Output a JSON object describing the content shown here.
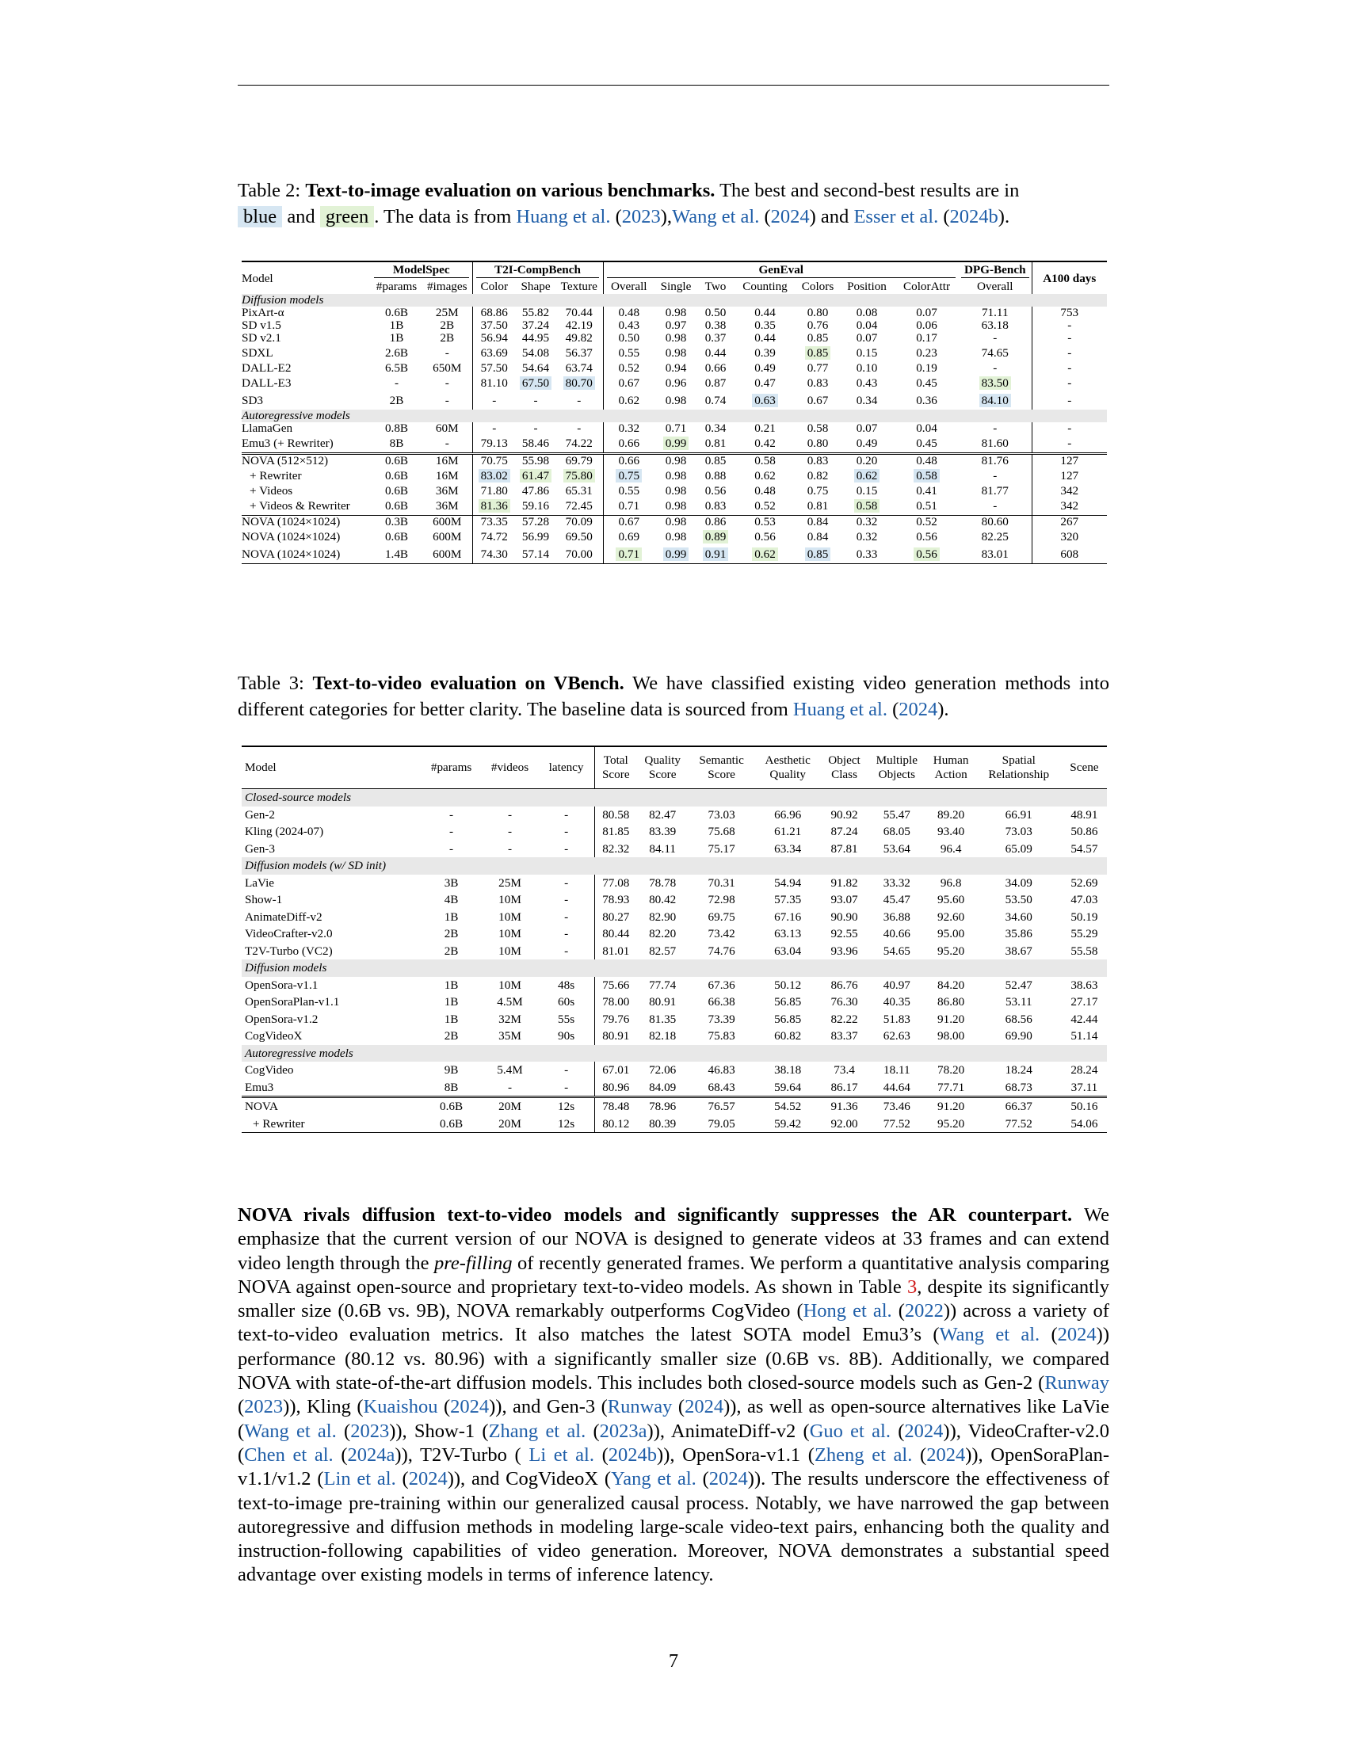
{
  "table2": {
    "caption": {
      "label": "Table 2: ",
      "title": "Text-to-image evaluation on various benchmarks.",
      "text1": " The best and second-best results are in ",
      "blue_word": "blue",
      "and": " and ",
      "green_word": "green",
      "text2": ". The data is from ",
      "cite1a": "Huang et al.",
      "cite1b": " (",
      "cite1c": "2023",
      "cite1d": "),",
      "cite2a": "Wang et al.",
      "cite2b": " (",
      "cite2c": "2024",
      "cite2d": ") and ",
      "cite3a": "Esser et al.",
      "cite3b": " (",
      "cite3c": "2024b",
      "cite3d": ")."
    },
    "groups": {
      "model": "Model",
      "modelspec": "ModelSpec",
      "t2i": "T2I-CompBench",
      "geneval": "GenEval",
      "dpg": "DPG-Bench",
      "a100": "A100 days"
    },
    "subheaders": [
      "#params",
      "#images",
      "Color",
      "Shape",
      "Texture",
      "Overall",
      "Single",
      "Two",
      "Counting",
      "Colors",
      "Position",
      "ColorAttr",
      "Overall"
    ],
    "sections": [
      {
        "title": "Diffusion models",
        "rows": [
          [
            "PixArt-α",
            "0.6B",
            "25M",
            "68.86",
            "55.82",
            "70.44",
            "0.48",
            "0.98",
            "0.50",
            "0.44",
            "0.80",
            "0.08",
            "0.07",
            "71.11",
            "753"
          ],
          [
            "SD v1.5",
            "1B",
            "2B",
            "37.50",
            "37.24",
            "42.19",
            "0.43",
            "0.97",
            "0.38",
            "0.35",
            "0.76",
            "0.04",
            "0.06",
            "63.18",
            "-"
          ],
          [
            "SD v2.1",
            "1B",
            "2B",
            "56.94",
            "44.95",
            "49.82",
            "0.50",
            "0.98",
            "0.37",
            "0.44",
            "0.85",
            "0.07",
            "0.17",
            "-",
            "-"
          ],
          [
            "SDXL",
            "2.6B",
            "-",
            "63.69",
            "54.08",
            "56.37",
            "0.55",
            "0.98",
            "0.44",
            "0.39",
            "0.85",
            "0.15",
            "0.23",
            "74.65",
            "-"
          ],
          [
            "DALL-E2",
            "6.5B",
            "650M",
            "57.50",
            "54.64",
            "63.74",
            "0.52",
            "0.94",
            "0.66",
            "0.49",
            "0.77",
            "0.10",
            "0.19",
            "-",
            "-"
          ],
          [
            "DALL-E3",
            "-",
            "-",
            "81.10",
            "67.50",
            "80.70",
            "0.67",
            "0.96",
            "0.87",
            "0.47",
            "0.83",
            "0.43",
            "0.45",
            "83.50",
            "-"
          ],
          [
            "SD3",
            "2B",
            "-",
            "-",
            "-",
            "-",
            "0.62",
            "0.98",
            "0.74",
            "0.63",
            "0.67",
            "0.34",
            "0.36",
            "84.10",
            "-"
          ]
        ]
      },
      {
        "title": "Autoregressive models",
        "rows": [
          [
            "LlamaGen",
            "0.8B",
            "60M",
            "-",
            "-",
            "-",
            "0.32",
            "0.71",
            "0.34",
            "0.21",
            "0.58",
            "0.07",
            "0.04",
            "-",
            "-"
          ],
          [
            "Emu3 (+ Rewriter)",
            "8B",
            "-",
            "79.13",
            "58.46",
            "74.22",
            "0.66",
            "0.99",
            "0.81",
            "0.42",
            "0.80",
            "0.49",
            "0.45",
            "81.60",
            "-"
          ]
        ]
      }
    ],
    "nova_rows": [
      [
        "NOVA (512×512)",
        "0.6B",
        "16M",
        "70.75",
        "55.98",
        "69.79",
        "0.66",
        "0.98",
        "0.85",
        "0.58",
        "0.83",
        "0.20",
        "0.48",
        "81.76",
        "127"
      ],
      [
        "+ Rewriter",
        "0.6B",
        "16M",
        "83.02",
        "61.47",
        "75.80",
        "0.75",
        "0.98",
        "0.88",
        "0.62",
        "0.82",
        "0.62",
        "0.58",
        "-",
        "127"
      ],
      [
        "+ Videos",
        "0.6B",
        "36M",
        "71.80",
        "47.86",
        "65.31",
        "0.55",
        "0.98",
        "0.56",
        "0.48",
        "0.75",
        "0.15",
        "0.41",
        "81.77",
        "342"
      ],
      [
        "+ Videos & Rewriter",
        "0.6B",
        "36M",
        "81.36",
        "59.16",
        "72.45",
        "0.71",
        "0.98",
        "0.83",
        "0.52",
        "0.81",
        "0.58",
        "0.51",
        "-",
        "342"
      ]
    ],
    "nova_hr_rows": [
      [
        "NOVA (1024×1024)",
        "0.3B",
        "600M",
        "73.35",
        "57.28",
        "70.09",
        "0.67",
        "0.98",
        "0.86",
        "0.53",
        "0.84",
        "0.32",
        "0.52",
        "80.60",
        "267"
      ],
      [
        "NOVA (1024×1024)",
        "0.6B",
        "600M",
        "74.72",
        "56.99",
        "69.50",
        "0.69",
        "0.98",
        "0.89",
        "0.56",
        "0.84",
        "0.32",
        "0.56",
        "82.25",
        "320"
      ],
      [
        "NOVA (1024×1024)",
        "1.4B",
        "600M",
        "74.30",
        "57.14",
        "70.00",
        "0.71",
        "0.99",
        "0.91",
        "0.62",
        "0.85",
        "0.33",
        "0.56",
        "83.01",
        "608"
      ]
    ],
    "highlights": {
      "blue": [
        "s0r5c4",
        "s0r5c5",
        "s0r6c9",
        "s0r6c13",
        "nr1c3",
        "nr1c6",
        "nr1c11",
        "nr1c12",
        "hr2c7",
        "hr2c8",
        "hr2c10"
      ],
      "green": [
        "s0r3c10",
        "s0r5c13",
        "s1r1c7",
        "nr1c4",
        "nr1c5",
        "nr3c3",
        "nr3c11",
        "hr1c8",
        "hr2c6",
        "hr2c9",
        "hr2c12"
      ]
    },
    "highlight_colors": {
      "blue": "#d6e6f2",
      "green": "#e2f2d6"
    }
  },
  "table3": {
    "caption": {
      "label": "Table 3: ",
      "title": "Text-to-video evaluation on VBench.",
      "text1": " We have classified existing video generation methods into different categories for better clarity. The baseline data is sourced from ",
      "cite1a": "Huang et al.",
      "cite1b": " (",
      "cite1c": "2024",
      "cite1d": ")."
    },
    "headers": [
      [
        "Model"
      ],
      [
        "#params"
      ],
      [
        "#videos"
      ],
      [
        "latency"
      ],
      [
        "Total",
        "Score"
      ],
      [
        "Quality",
        "Score"
      ],
      [
        "Semantic",
        "Score"
      ],
      [
        "Aesthetic",
        "Quality"
      ],
      [
        "Object",
        "Class"
      ],
      [
        "Multiple",
        "Objects"
      ],
      [
        "Human",
        "Action"
      ],
      [
        "Spatial",
        "Relationship"
      ],
      [
        "Scene"
      ]
    ],
    "sections": [
      {
        "title": "Closed-source models",
        "rows": [
          [
            "Gen-2",
            "-",
            "-",
            "-",
            "80.58",
            "82.47",
            "73.03",
            "66.96",
            "90.92",
            "55.47",
            "89.20",
            "66.91",
            "48.91"
          ],
          [
            "Kling (2024-07)",
            "-",
            "-",
            "-",
            "81.85",
            "83.39",
            "75.68",
            "61.21",
            "87.24",
            "68.05",
            "93.40",
            "73.03",
            "50.86"
          ],
          [
            "Gen-3",
            "-",
            "-",
            "-",
            "82.32",
            "84.11",
            "75.17",
            "63.34",
            "87.81",
            "53.64",
            "96.4",
            "65.09",
            "54.57"
          ]
        ]
      },
      {
        "title": "Diffusion models (w/ SD init)",
        "rows": [
          [
            "LaVie",
            "3B",
            "25M",
            "-",
            "77.08",
            "78.78",
            "70.31",
            "54.94",
            "91.82",
            "33.32",
            "96.8",
            "34.09",
            "52.69"
          ],
          [
            "Show-1",
            "4B",
            "10M",
            "-",
            "78.93",
            "80.42",
            "72.98",
            "57.35",
            "93.07",
            "45.47",
            "95.60",
            "53.50",
            "47.03"
          ],
          [
            "AnimateDiff-v2",
            "1B",
            "10M",
            "-",
            "80.27",
            "82.90",
            "69.75",
            "67.16",
            "90.90",
            "36.88",
            "92.60",
            "34.60",
            "50.19"
          ],
          [
            "VideoCrafter-v2.0",
            "2B",
            "10M",
            "-",
            "80.44",
            "82.20",
            "73.42",
            "63.13",
            "92.55",
            "40.66",
            "95.00",
            "35.86",
            "55.29"
          ],
          [
            "T2V-Turbo (VC2)",
            "2B",
            "10M",
            "-",
            "81.01",
            "82.57",
            "74.76",
            "63.04",
            "93.96",
            "54.65",
            "95.20",
            "38.67",
            "55.58"
          ]
        ]
      },
      {
        "title": "Diffusion models",
        "rows": [
          [
            "OpenSora-v1.1",
            "1B",
            "10M",
            "48s",
            "75.66",
            "77.74",
            "67.36",
            "50.12",
            "86.76",
            "40.97",
            "84.20",
            "52.47",
            "38.63"
          ],
          [
            "OpenSoraPlan-v1.1",
            "1B",
            "4.5M",
            "60s",
            "78.00",
            "80.91",
            "66.38",
            "56.85",
            "76.30",
            "40.35",
            "86.80",
            "53.11",
            "27.17"
          ],
          [
            "OpenSora-v1.2",
            "1B",
            "32M",
            "55s",
            "79.76",
            "81.35",
            "73.39",
            "56.85",
            "82.22",
            "51.83",
            "91.20",
            "68.56",
            "42.44"
          ],
          [
            "CogVideoX",
            "2B",
            "35M",
            "90s",
            "80.91",
            "82.18",
            "75.83",
            "60.82",
            "83.37",
            "62.63",
            "98.00",
            "69.90",
            "51.14"
          ]
        ]
      },
      {
        "title": "Autoregressive models",
        "rows": [
          [
            "CogVideo",
            "9B",
            "5.4M",
            "-",
            "67.01",
            "72.06",
            "46.83",
            "38.18",
            "73.4",
            "18.11",
            "78.20",
            "18.24",
            "28.24"
          ],
          [
            "Emu3",
            "8B",
            "-",
            "-",
            "80.96",
            "84.09",
            "68.43",
            "59.64",
            "86.17",
            "44.64",
            "77.71",
            "68.73",
            "37.11"
          ]
        ]
      }
    ],
    "nova_rows": [
      [
        "NOVA",
        "0.6B",
        "20M",
        "12s",
        "78.48",
        "78.96",
        "76.57",
        "54.52",
        "91.36",
        "73.46",
        "91.20",
        "66.37",
        "50.16"
      ],
      [
        "+ Rewriter",
        "0.6B",
        "20M",
        "12s",
        "80.12",
        "80.39",
        "79.05",
        "59.42",
        "92.00",
        "77.52",
        "95.20",
        "77.52",
        "54.06"
      ]
    ]
  },
  "paragraph": {
    "heading": "NOVA rivals diffusion text-to-video models and significantly suppresses the AR counterpart.",
    "t1": " We emphasize that the current version of our NOVA is designed to generate videos at 33 frames and can extend video length through the ",
    "t1i": "pre-filling",
    "t2": " of recently generated frames. We perform a quantitative analysis comparing NOVA against open-source and proprietary text-to-video models. As shown in Table ",
    "tref": "3",
    "t3": ", despite its significantly smaller size (0.6B vs. 9B), NOVA remarkably outperforms CogVideo (",
    "c_hong": "Hong et al.",
    "c_hong_y": "2022",
    "t4": ") across a variety of text-to-video evaluation metrics. It also matches the latest SOTA model Emu3’s (",
    "c_wang": "Wang et al.",
    "c_wang_y": "2024",
    "t5": ") performance (80.12 vs. 80.96) with a significantly smaller size (0.6B vs. 8B). Additionally, we compared NOVA with state-of-the-art diffusion models. This includes both closed-source models such as Gen-2 (",
    "c_runway1": "Runway",
    "c_runway1_y": "2023",
    "t6": "), Kling (",
    "c_kuai": "Kuaishou",
    "c_kuai_y": "2024",
    "t7": "), and Gen-3 (",
    "c_runway2": "Runway",
    "c_runway2_y": "2024",
    "t8": "), as well as open-source alternatives like LaVie (",
    "c_wang2": "Wang et al.",
    "c_wang2_y": "2023",
    "t9": "), Show-1 (",
    "c_zhang": "Zhang et al.",
    "c_zhang_y": "2023a",
    "t10": "), AnimateDiff-v2 (",
    "c_guo": "Guo et al.",
    "c_guo_y": "2024",
    "t11": "), VideoCrafter-v2.0 (",
    "c_chen": "Chen et al.",
    "c_chen_y": "2024a",
    "t12": "), T2V-Turbo ( ",
    "c_li": "Li et al.",
    "c_li_y": "2024b",
    "t13": "), OpenSora-v1.1 (",
    "c_zheng": "Zheng et al.",
    "c_zheng_y": "2024",
    "t14": "), OpenSoraPlan-v1.1/v1.2 (",
    "c_lin": "Lin et al.",
    "c_lin_y": "2024",
    "t15": "), and CogVideoX (",
    "c_yang": "Yang et al.",
    "c_yang_y": "2024",
    "t16": "). The results underscore the effectiveness of text-to-image pre-training within our generalized causal process. Notably, we have narrowed the gap between autoregressive and diffusion methods in modeling large-scale video-text pairs, enhancing both the quality and instruction-following capabilities of video generation. Moreover, NOVA demonstrates a substantial speed advantage over existing models in terms of inference latency."
  },
  "page_number": "7"
}
